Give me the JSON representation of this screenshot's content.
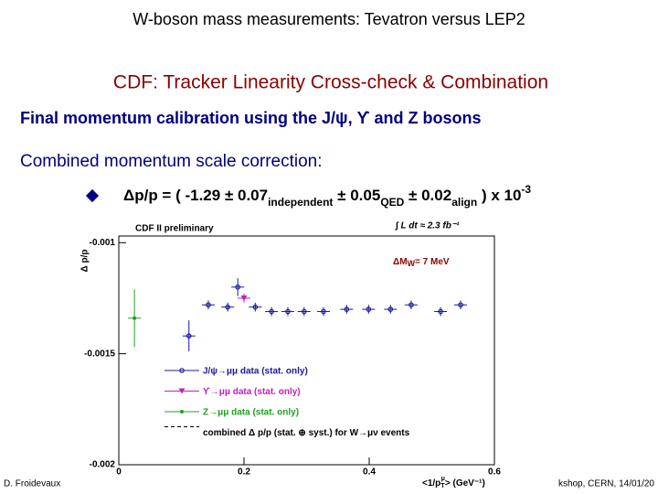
{
  "header": {
    "title": "W-boson mass measurements: Tevatron versus LEP2",
    "subtitle": "CDF: Tracker Linearity Cross-check & Combination",
    "line1": "Final momentum calibration using the J/ψ, ϒ and Z bosons",
    "line2": "Combined momentum scale correction:"
  },
  "formula": {
    "main": "Δp/p = ( -1.29 ± 0.07",
    "sub1": "independent",
    "mid1": " ± 0.05",
    "sub2": "QED",
    "mid2": " ± 0.02",
    "sub3": "align",
    "end": " ) x 10",
    "sup": "-3"
  },
  "footer": {
    "left": "D. Froidevaux",
    "right": "kshop, CERN, 14/01/20"
  },
  "chart_data": {
    "type": "scatter",
    "annotations": [
      "CDF II preliminary",
      "∫ L dt ≈ 2.3 fb⁻¹",
      "ΔM",
      "W",
      "= 7 MeV"
    ],
    "x_label": "<1/p",
    "x_label_sub": "T",
    "x_label_sup": "μ",
    "x_label_end": "> (GeV⁻¹)",
    "y_label": "Δ p/p",
    "xlim": [
      0,
      0.6
    ],
    "ylim": [
      -0.002,
      -0.00097
    ],
    "xticks": [
      0,
      0.2,
      0.4,
      0.6
    ],
    "yticks": [
      -0.001,
      -0.0015,
      -0.002
    ],
    "series": [
      {
        "name": "J/ψ→μμ data (stat. only)",
        "color": "#1a1a9c",
        "x": [
          0.112,
          0.143,
          0.174,
          0.19,
          0.218,
          0.244,
          0.27,
          0.296,
          0.327,
          0.364,
          0.399,
          0.434,
          0.467,
          0.514,
          0.546
        ],
        "values": [
          -0.00142,
          -0.00128,
          -0.00129,
          -0.0012,
          -0.00129,
          -0.00131,
          -0.00131,
          -0.00131,
          -0.00131,
          -0.0013,
          -0.0013,
          -0.0013,
          -0.00128,
          -0.00131,
          -0.00128
        ],
        "errors": [
          7e-05,
          2e-05,
          2e-05,
          4e-05,
          2e-05,
          2e-05,
          2e-05,
          2e-05,
          2e-05,
          2e-05,
          2e-05,
          2e-05,
          2e-05,
          2e-05,
          2e-05
        ]
      },
      {
        "name": "ϒ→μμ data (stat. only)",
        "color": "#c020c0",
        "x": [
          0.2
        ],
        "values": [
          -0.00125
        ],
        "errors": [
          2e-05
        ]
      },
      {
        "name": "Z→μμ data (stat. only)",
        "color": "#20a020",
        "x": [
          0.025
        ],
        "values": [
          -0.00134
        ],
        "errors": [
          0.00013
        ]
      },
      {
        "name": "combined Δ p/p (stat. ⊕ syst.) for W→μν events",
        "color": "#000000"
      }
    ]
  }
}
